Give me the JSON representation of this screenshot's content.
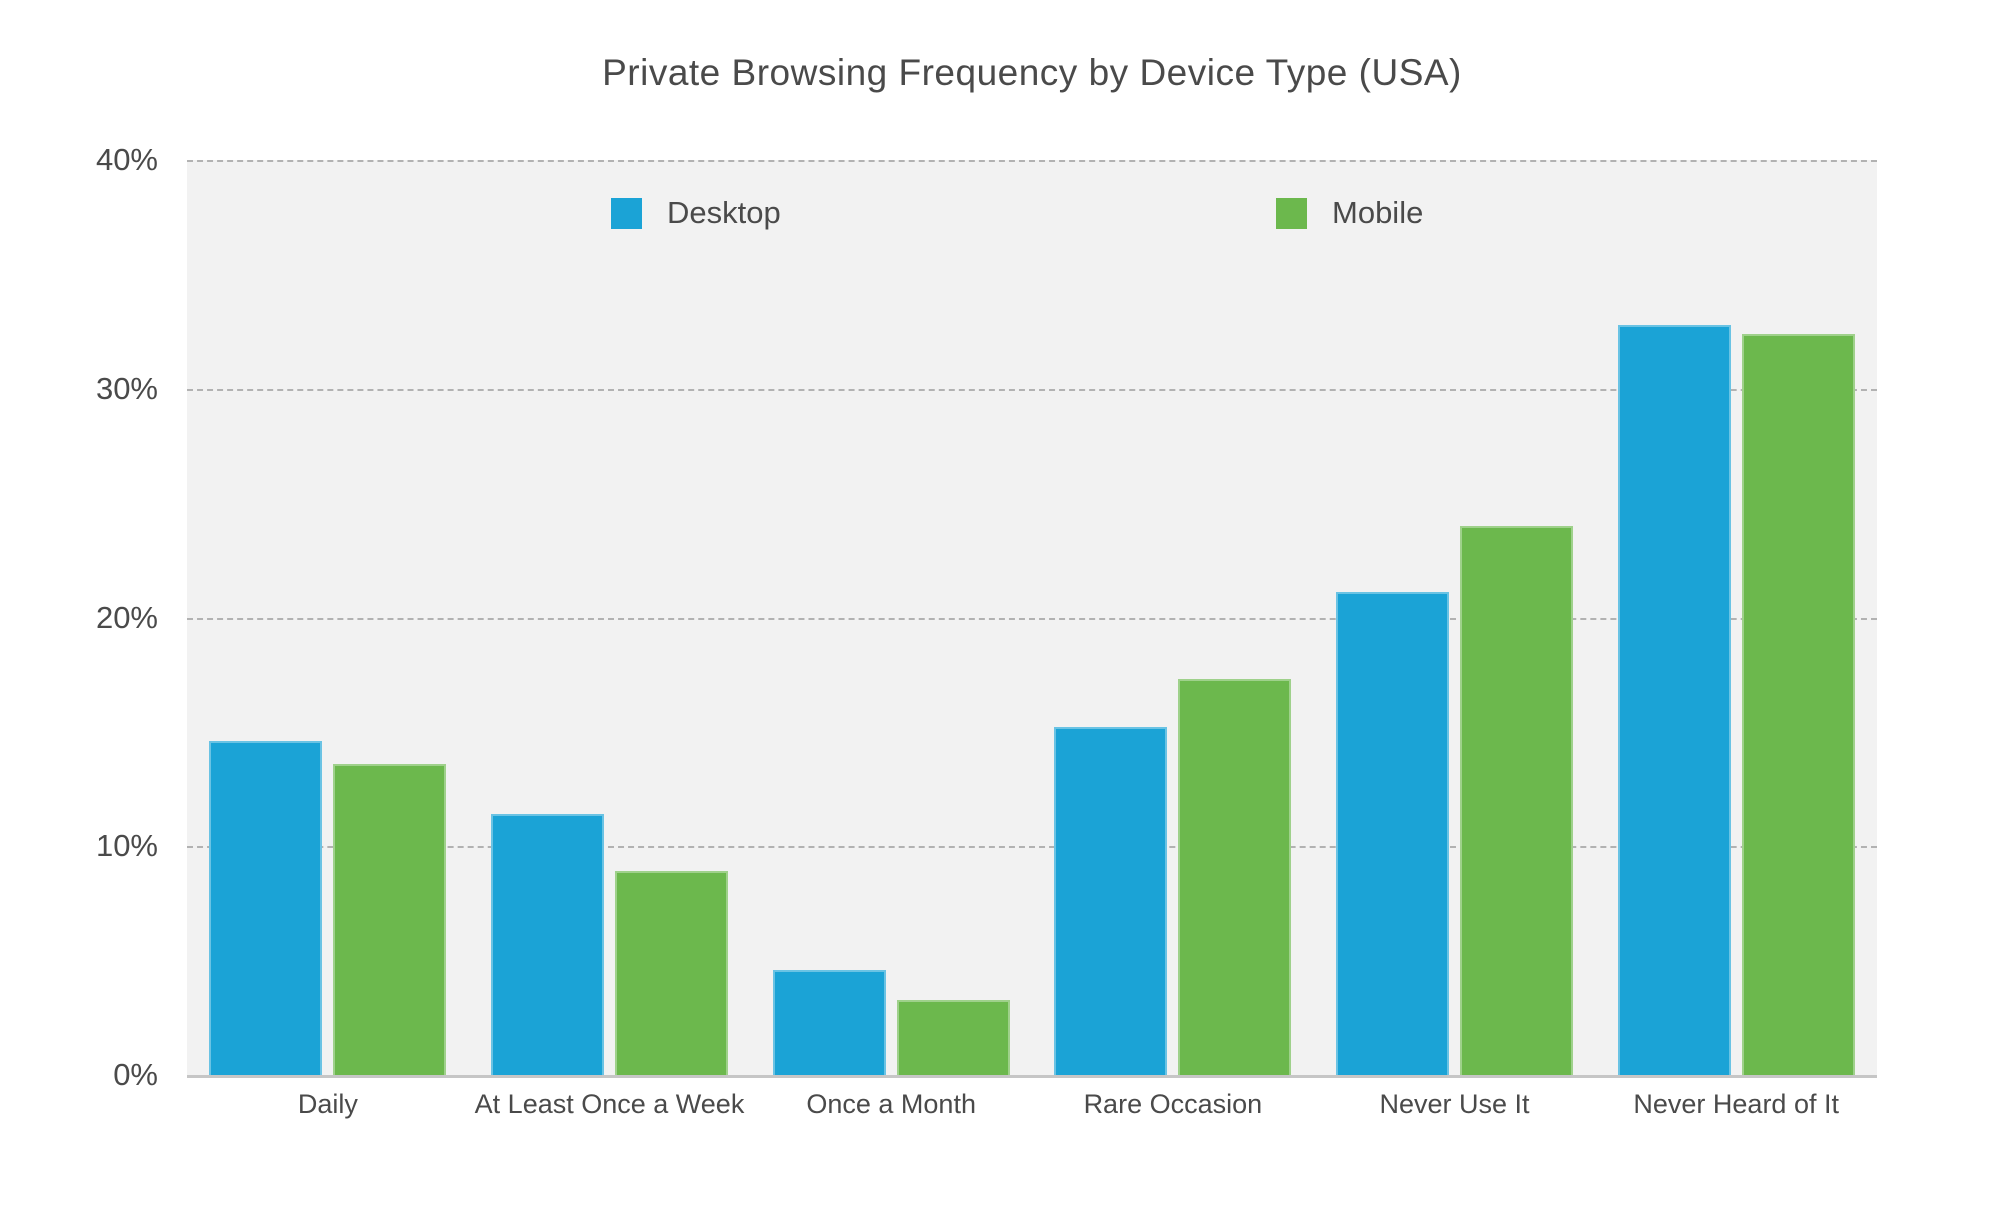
{
  "title": "Private Browsing Frequency by Device Type (USA)",
  "colors": {
    "desktop": "#1ba3d6",
    "mobile": "#6cb84d",
    "plot_background": "#f2f2f2",
    "gridline": "#b2b2b2",
    "axis_line": "#c6c6c6",
    "text": "#4a4a4a"
  },
  "legend": {
    "position": "top inside plot",
    "items": [
      {
        "label": "Desktop",
        "color": "#1ba3d6"
      },
      {
        "label": "Mobile",
        "color": "#6cb84d"
      }
    ]
  },
  "chart_data": {
    "type": "bar",
    "title": "Private Browsing Frequency by Device Type (USA)",
    "categories": [
      "Daily",
      "At Least Once a Week",
      "Once a Month",
      "Rare Occasion",
      "Never Use It",
      "Never Heard of It"
    ],
    "series": [
      {
        "name": "Desktop",
        "color": "#1ba3d6",
        "values": [
          14.6,
          11.4,
          4.6,
          15.2,
          21.1,
          32.8
        ]
      },
      {
        "name": "Mobile",
        "color": "#6cb84d",
        "values": [
          13.6,
          8.9,
          3.3,
          17.3,
          24.0,
          32.4
        ]
      }
    ],
    "xlabel": "",
    "ylabel": "",
    "ylim": [
      0,
      40
    ],
    "y_ticks": [
      {
        "label": "40%",
        "value": 40
      },
      {
        "label": "30%",
        "value": 30
      },
      {
        "label": "20%",
        "value": 20
      },
      {
        "label": "10%",
        "value": 10
      },
      {
        "label": "0%",
        "value": 0
      }
    ],
    "grid": "horizontal dashed",
    "legend_position": "top"
  }
}
